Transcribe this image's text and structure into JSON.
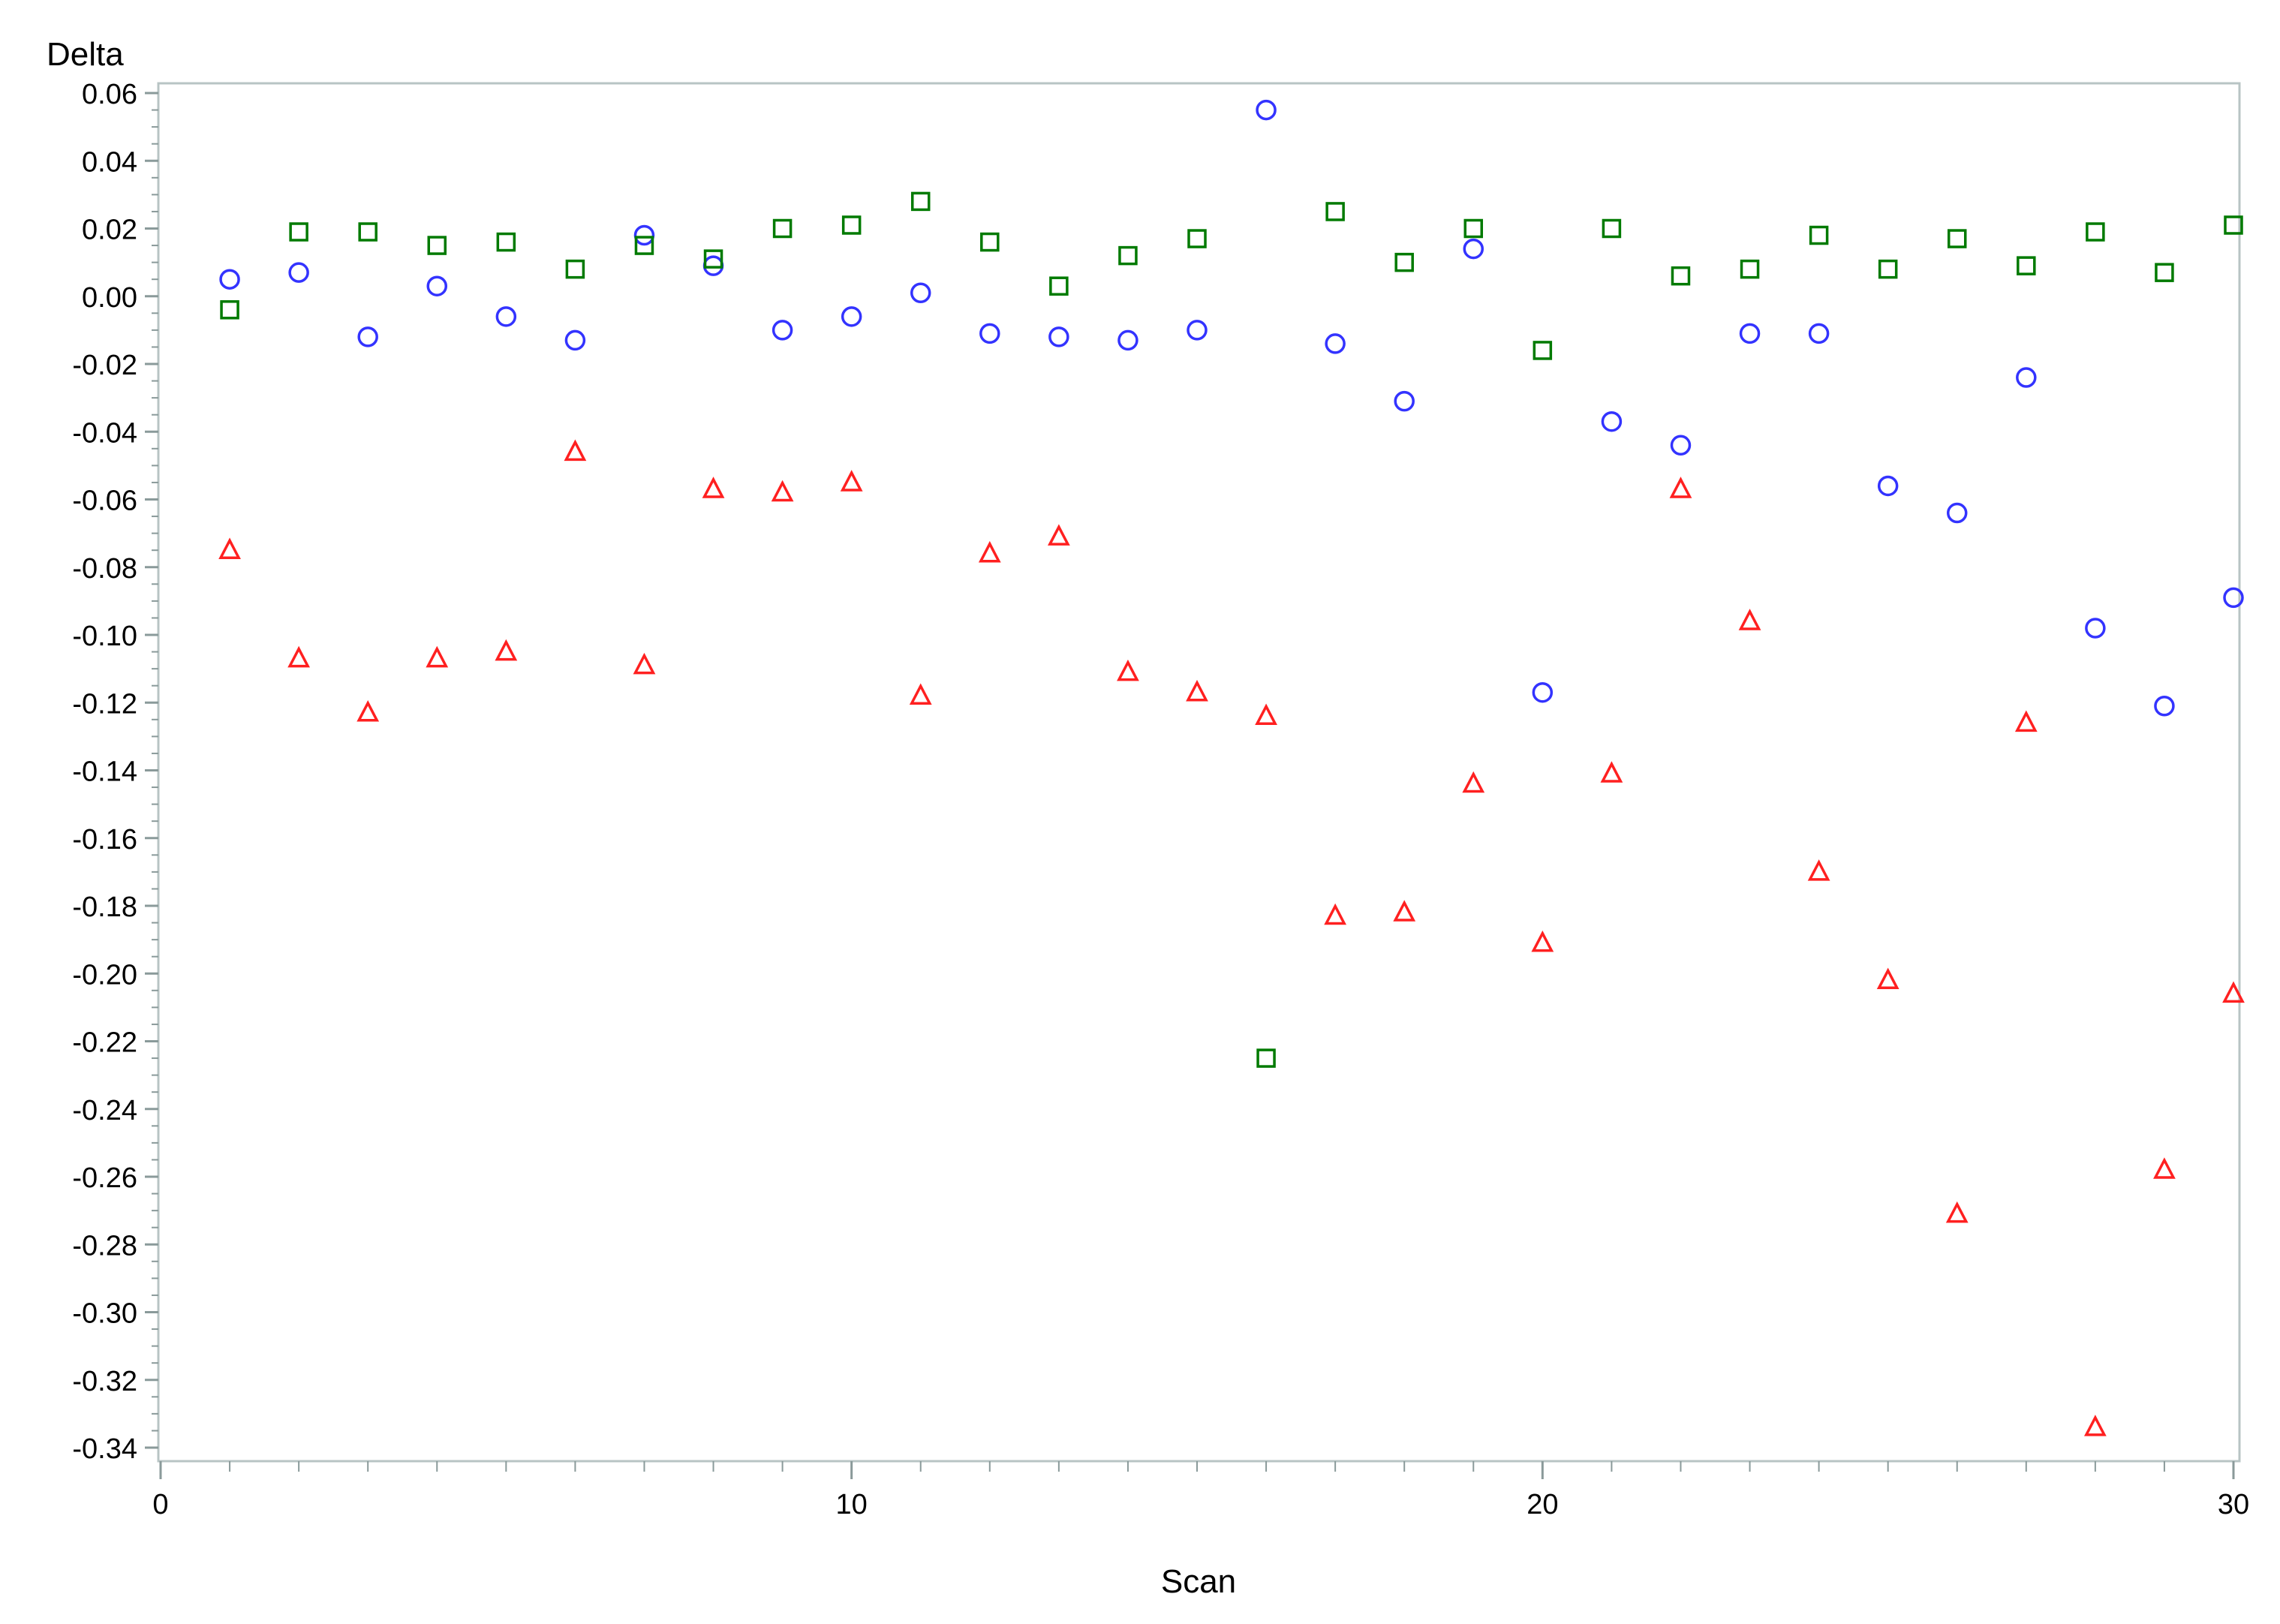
{
  "chart_data": {
    "type": "scatter",
    "title": "",
    "xlabel": "Scan",
    "ylabel": "Delta",
    "xlim": [
      0,
      30
    ],
    "ylim": [
      -0.345,
      0.065
    ],
    "x_ticks": [
      0,
      10,
      20,
      30
    ],
    "x_tick_labels": [
      "0",
      "10",
      "20",
      "30"
    ],
    "y_ticks": [
      0.06,
      0.04,
      0.02,
      0.0,
      -0.02,
      -0.04,
      -0.06,
      -0.08,
      -0.1,
      -0.12,
      -0.14,
      -0.16,
      -0.18,
      -0.2,
      -0.22,
      -0.24,
      -0.26,
      -0.28,
      -0.3,
      -0.32,
      -0.34
    ],
    "y_tick_labels": [
      "0.06",
      "0.04",
      "0.02",
      "0.00",
      "-0.02",
      "-0.04",
      "-0.06",
      "-0.08",
      "-0.10",
      "-0.12",
      "-0.14",
      "-0.16",
      "-0.18",
      "-0.20",
      "-0.22",
      "-0.24",
      "-0.26",
      "-0.28",
      "-0.30",
      "-0.32",
      "-0.34"
    ],
    "grid": false,
    "legend": "none",
    "x": [
      1,
      2,
      3,
      4,
      5,
      6,
      7,
      8,
      9,
      10,
      11,
      12,
      13,
      14,
      15,
      16,
      17,
      18,
      19,
      20,
      21,
      22,
      23,
      24,
      25,
      26,
      27,
      28,
      29,
      30
    ],
    "series": [
      {
        "marker": "circle",
        "color": "#3333ff",
        "values": [
          0.005,
          0.007,
          -0.012,
          0.003,
          -0.006,
          -0.013,
          0.018,
          0.009,
          -0.01,
          -0.006,
          0.001,
          -0.011,
          -0.012,
          -0.013,
          -0.01,
          0.055,
          -0.014,
          -0.031,
          0.014,
          -0.117,
          -0.037,
          -0.044,
          -0.011,
          -0.011,
          -0.056,
          -0.064,
          -0.024,
          -0.098,
          -0.121,
          -0.089
        ]
      },
      {
        "marker": "square",
        "color": "#007a00",
        "values": [
          -0.004,
          0.019,
          0.019,
          0.015,
          0.016,
          0.008,
          0.015,
          0.011,
          0.02,
          0.021,
          0.028,
          0.016,
          0.003,
          0.012,
          0.017,
          -0.225,
          0.025,
          0.01,
          0.02,
          -0.016,
          0.02,
          0.006,
          0.008,
          0.018,
          0.008,
          0.017,
          0.009,
          0.019,
          0.007,
          0.021
        ]
      },
      {
        "marker": "triangle",
        "color": "#ff2020",
        "values": [
          -0.075,
          -0.107,
          -0.123,
          -0.107,
          -0.105,
          -0.046,
          -0.109,
          -0.057,
          -0.058,
          -0.055,
          -0.118,
          -0.076,
          -0.071,
          -0.111,
          -0.117,
          -0.124,
          -0.183,
          -0.182,
          -0.144,
          -0.191,
          -0.141,
          -0.057,
          -0.096,
          -0.17,
          -0.202,
          -0.271,
          -0.126,
          -0.334,
          -0.258,
          -0.206
        ]
      }
    ]
  }
}
